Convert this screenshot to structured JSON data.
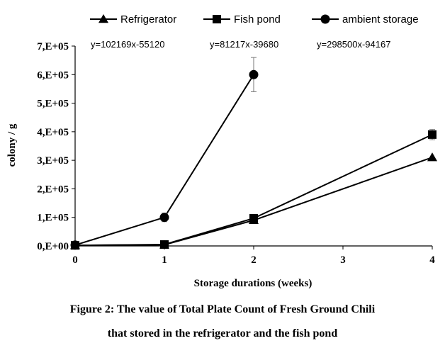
{
  "caption": {
    "line1": "Figure 2: The value of Total Plate Count of Fresh Ground Chili",
    "line2": "that stored in the refrigerator and the fish pond"
  },
  "chart_data": {
    "type": "line",
    "xlabel": "Storage durations (weeks)",
    "ylabel": "colony / g",
    "xlim": [
      0,
      4
    ],
    "ylim": [
      0,
      700000
    ],
    "x_ticks": [
      0,
      1,
      2,
      3,
      4
    ],
    "y_ticks": [
      0,
      100000,
      200000,
      300000,
      400000,
      500000,
      600000,
      700000
    ],
    "y_tick_labels": [
      "0,E+00",
      "1,E+05",
      "2,E+05",
      "3,E+05",
      "4,E+05",
      "5,E+05",
      "6,E+05",
      "7,E+05"
    ],
    "legend_position": "top",
    "grid": false,
    "series": [
      {
        "name": "Refrigerator",
        "marker": "triangle",
        "color": "#000000",
        "x": [
          0,
          1,
          2,
          4
        ],
        "y": [
          2000,
          4000,
          90000,
          310000
        ],
        "error": [
          0,
          0,
          0,
          0
        ]
      },
      {
        "name": "Fish pond",
        "marker": "square",
        "color": "#000000",
        "x": [
          0,
          1,
          2,
          4
        ],
        "y": [
          2000,
          5000,
          97000,
          390000
        ],
        "error": [
          0,
          0,
          0,
          18000
        ]
      },
      {
        "name": "ambient storage",
        "marker": "circle",
        "color": "#000000",
        "x": [
          0,
          1,
          2
        ],
        "y": [
          3000,
          100000,
          600000
        ],
        "error": [
          0,
          15000,
          60000
        ]
      }
    ],
    "equations": [
      "y=102169x-55120",
      "y=81217x-39680",
      "y=298500x-94167"
    ]
  }
}
